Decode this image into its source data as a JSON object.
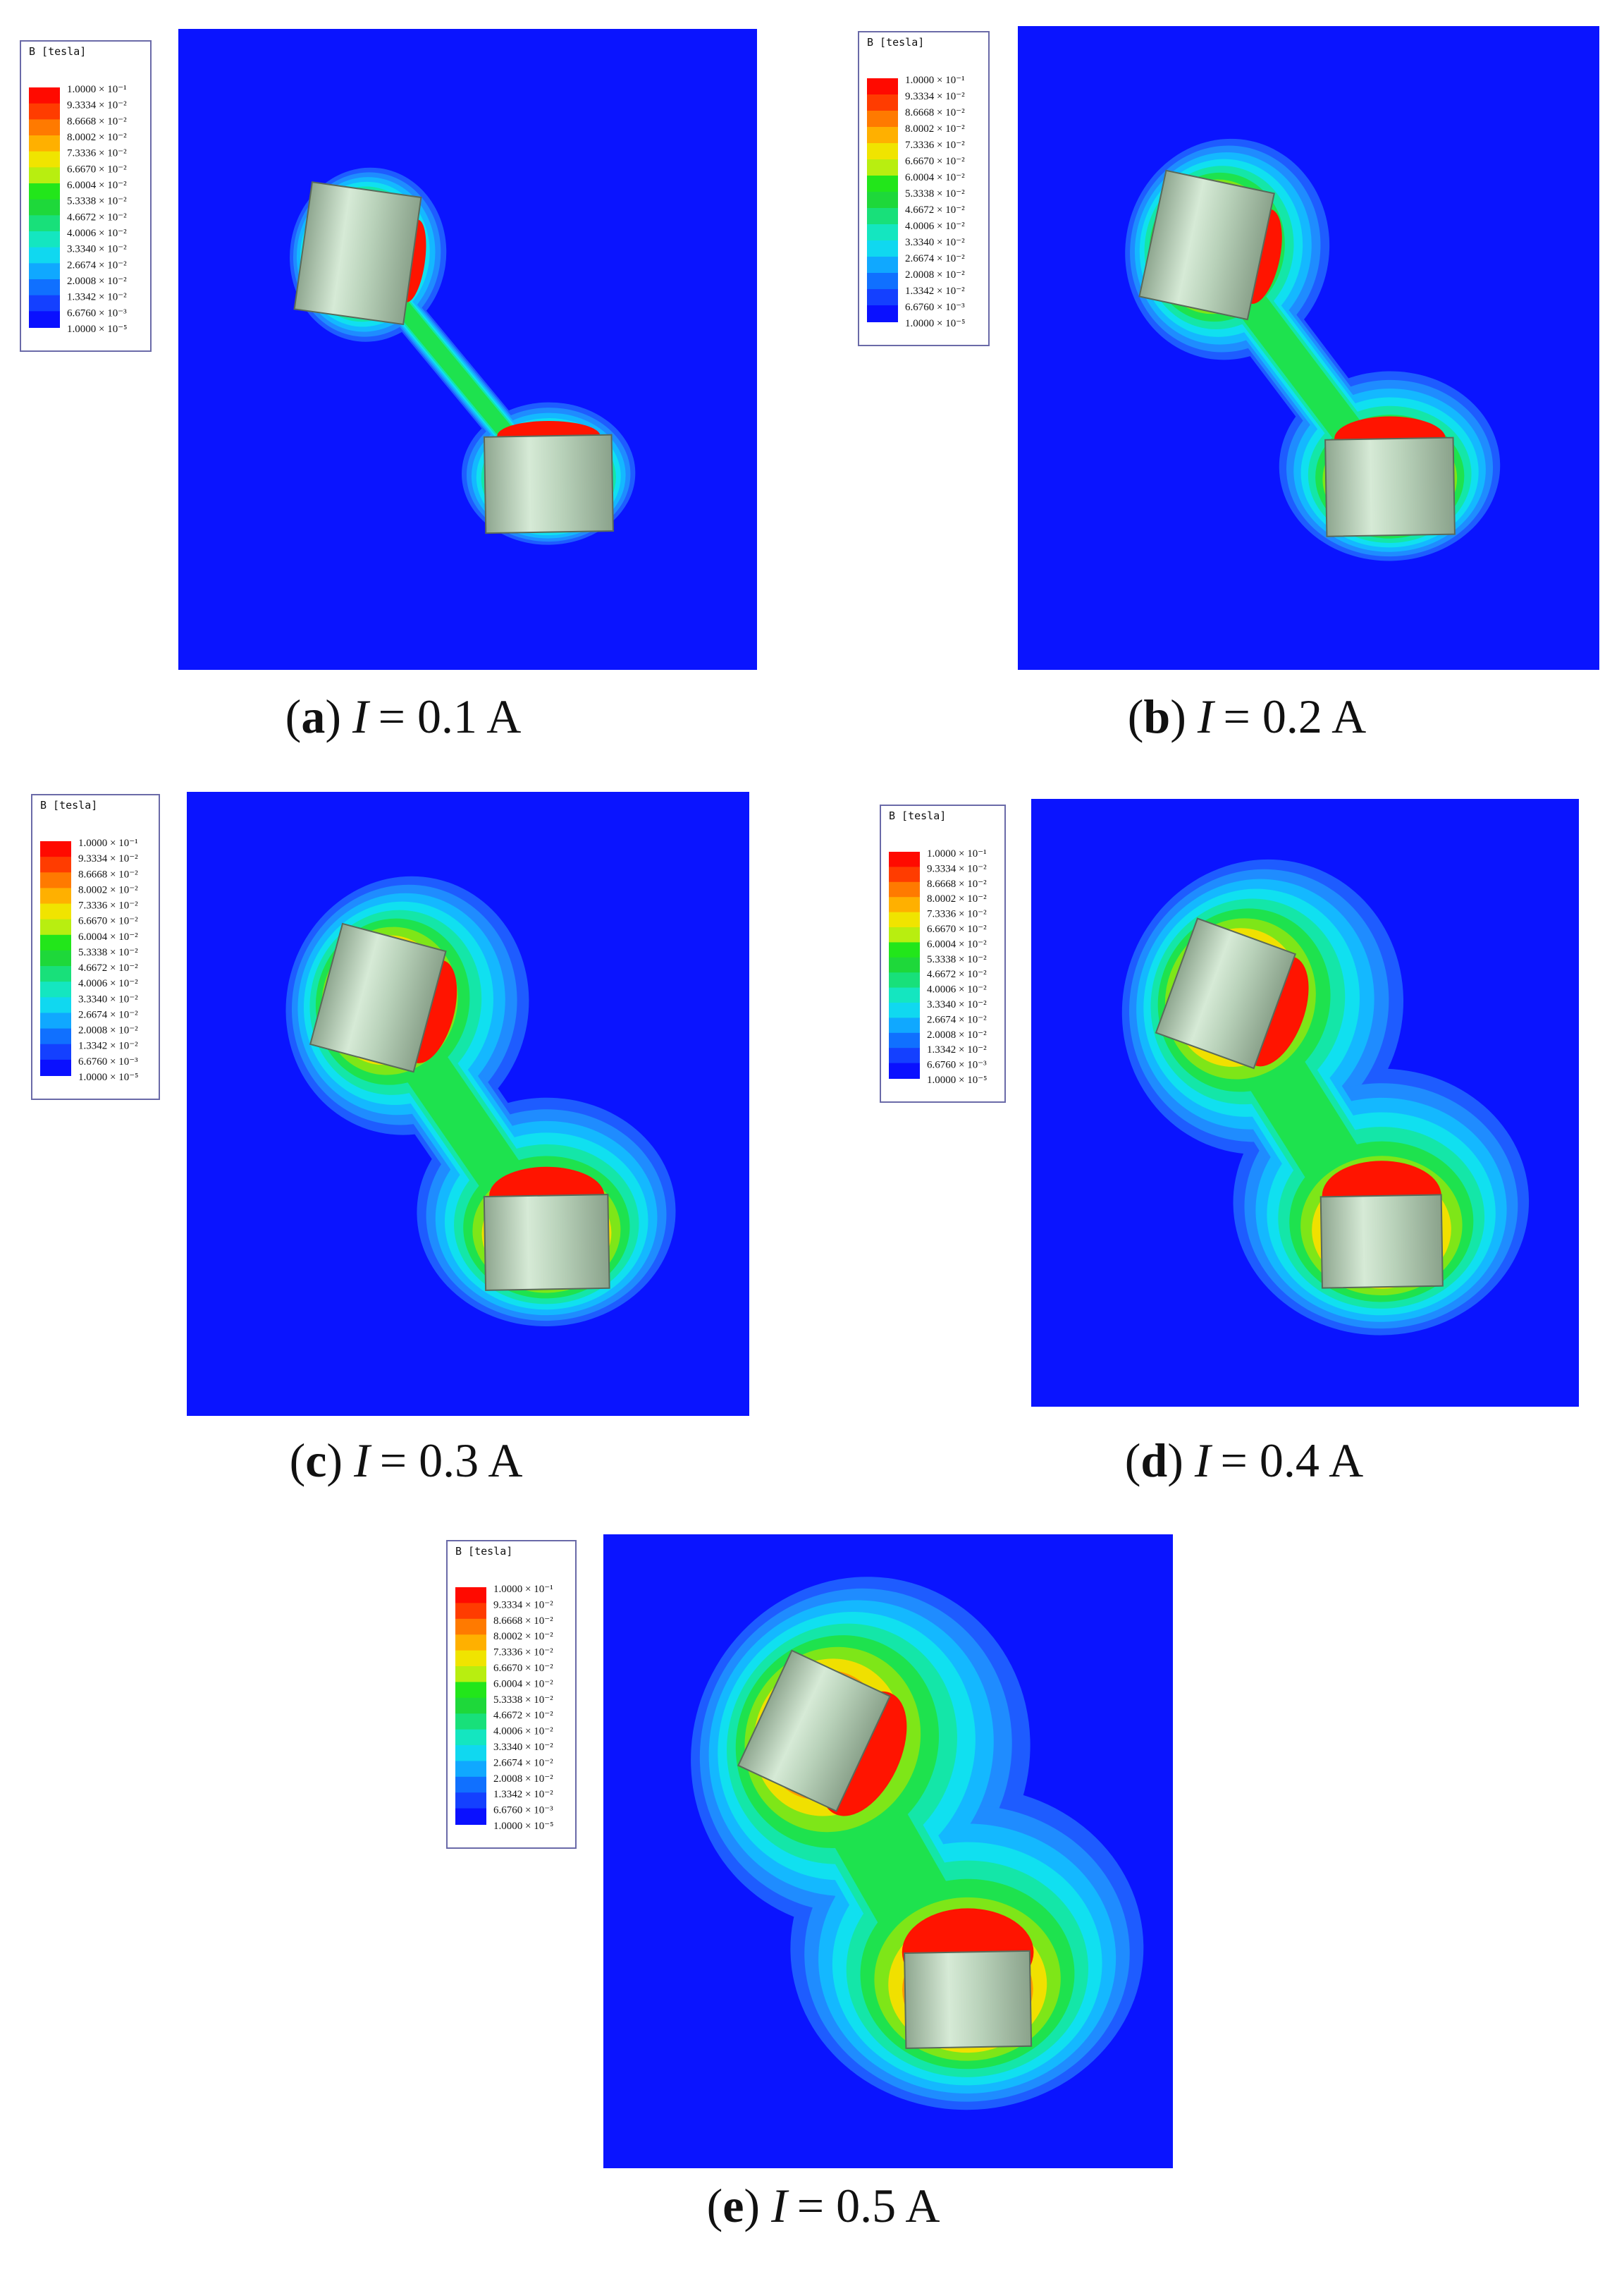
{
  "legend": {
    "title": "B [tesla]",
    "labels": [
      "1.0000 × 10⁻¹",
      "9.3334 × 10⁻²",
      "8.6668 × 10⁻²",
      "8.0002 × 10⁻²",
      "7.3336 × 10⁻²",
      "6.6670 × 10⁻²",
      "6.0004 × 10⁻²",
      "5.3338 × 10⁻²",
      "4.6672 × 10⁻²",
      "4.0006 × 10⁻²",
      "3.3340 × 10⁻²",
      "2.6674 × 10⁻²",
      "2.0008 × 10⁻²",
      "1.3342 × 10⁻²",
      "6.6760 × 10⁻³",
      "1.0000 × 10⁻⁵"
    ]
  },
  "panels": [
    {
      "caption": [
        "(",
        "a",
        ")",
        "I",
        "= 0.1 A"
      ]
    },
    {
      "caption": [
        "(",
        "b",
        ")",
        "I",
        "= 0.2 A"
      ]
    },
    {
      "caption": [
        "(",
        "c",
        ")",
        "I",
        "= 0.3 A"
      ]
    },
    {
      "caption": [
        "(",
        "d",
        ")",
        "I",
        "= 0.4 A"
      ]
    },
    {
      "caption": [
        "(",
        "e",
        ")",
        "I",
        "= 0.5 A"
      ]
    }
  ]
}
